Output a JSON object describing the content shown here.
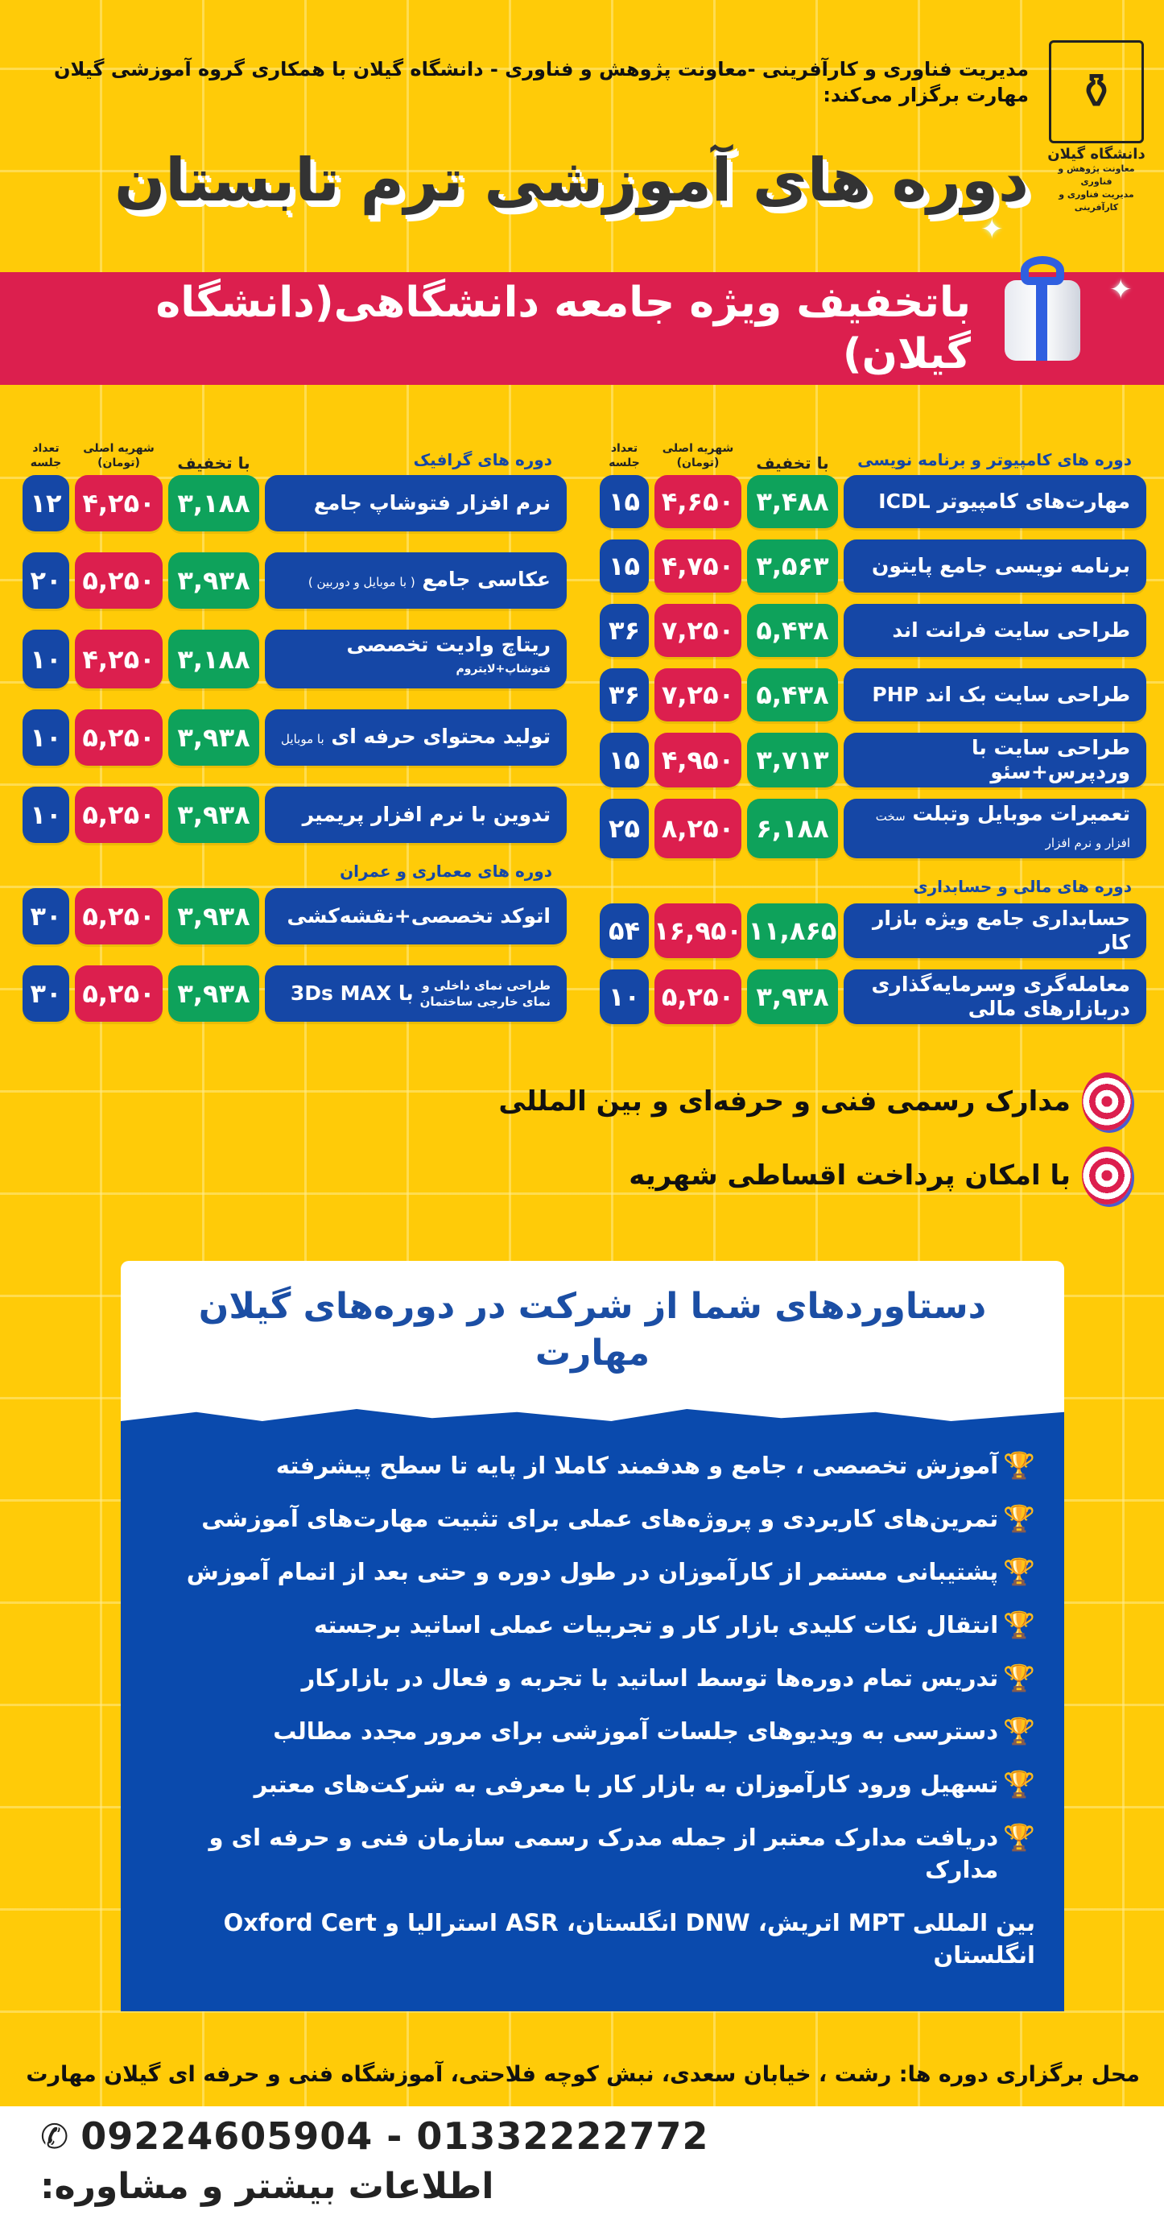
{
  "header": {
    "org_line": "مدیریت فناوری و کارآفرینی -معاونت پژوهش و فناوری - دانشگاه گیلان  با همکاری گروه آموزشی گیلان مهارت برگزار می‌کند:",
    "title": "دوره های آموزشی ترم تابستان",
    "banner": "باتخفیف ویژه جامعه دانشگاهی(دانشگاه گیلان)",
    "logo": {
      "name": "دانشگاه گیلان",
      "line2": "معاونت پژوهش و فناوری",
      "line3": "مدیریت فناوری و کارآفرینی",
      "icon": "university-emblem-icon"
    }
  },
  "columns": {
    "discounted": "با تخفیف",
    "original": "شهریه اصلی (تومان)",
    "sessions": "تعداد جلسه"
  },
  "tables": [
    {
      "side": "left",
      "sections": [
        {
          "label": "دوره های گرافیک",
          "courses": [
            {
              "name": "نرم افزار فتوشاپ جامع",
              "discounted": "۳,۱۸۸",
              "original": "۴,۲۵۰",
              "sessions": "۱۲"
            },
            {
              "name": "عکاسی جامع",
              "note": "( با موبایل و دوربین )",
              "discounted": "۳,۹۳۸",
              "original": "۵,۲۵۰",
              "sessions": "۲۰"
            },
            {
              "name": "ریتاچ وادیت تخصصی",
              "sup": "فتوشاپ+لایتروم",
              "discounted": "۳,۱۸۸",
              "original": "۴,۲۵۰",
              "sessions": "۱۰"
            },
            {
              "name": "تولید محتوای حرفه ای",
              "note": "با موبایل",
              "discounted": "۳,۹۳۸",
              "original": "۵,۲۵۰",
              "sessions": "۱۰"
            },
            {
              "name": "تدوین با نرم افزار پریمیر",
              "discounted": "۳,۹۳۸",
              "original": "۵,۲۵۰",
              "sessions": "۱۰"
            }
          ]
        },
        {
          "label": "دوره های معماری و عمران",
          "courses": [
            {
              "name": "اتوکد تخصصی+نقشه‌کشی",
              "discounted": "۳,۹۳۸",
              "original": "۵,۲۵۰",
              "sessions": "۳۰"
            },
            {
              "name": "با 3Ds MAX",
              "pre1": "طراحی نمای داخلی و",
              "pre2": "نمای خارجی ساختمان",
              "discounted": "۳,۹۳۸",
              "original": "۵,۲۵۰",
              "sessions": "۳۰"
            }
          ]
        }
      ]
    },
    {
      "side": "right",
      "sections": [
        {
          "label": "دوره های کامپیوتر و برنامه نویسی",
          "courses": [
            {
              "name": "مهارت‌های کامپیوتر ICDL",
              "discounted": "۳,۴۸۸",
              "original": "۴,۶۵۰",
              "sessions": "۱۵"
            },
            {
              "name": "برنامه نویسی جامع پایتون",
              "discounted": "۳,۵۶۳",
              "original": "۴,۷۵۰",
              "sessions": "۱۵"
            },
            {
              "name": "طراحی سایت فرانت اند",
              "discounted": "۵,۴۳۸",
              "original": "۷,۲۵۰",
              "sessions": "۳۶"
            },
            {
              "name": "طراحی سایت بک اند PHP",
              "discounted": "۵,۴۳۸",
              "original": "۷,۲۵۰",
              "sessions": "۳۶"
            },
            {
              "name": "طراحی سایت با وردپرس+سئو",
              "discounted": "۳,۷۱۳",
              "original": "۴,۹۵۰",
              "sessions": "۱۵"
            },
            {
              "name": "تعمیرات موبایل وتبلت",
              "note": "سخت افزار و نرم افزار",
              "discounted": "۶,۱۸۸",
              "original": "۸,۲۵۰",
              "sessions": "۲۵"
            }
          ]
        },
        {
          "label": "دوره های مالی و حسابداری",
          "courses": [
            {
              "name": "حسابداری جامع ویژه بازار کار",
              "discounted": "۱۱,۸۶۵",
              "original": "۱۶,۹۵۰",
              "sessions": "۵۴"
            },
            {
              "name": "معامله‌گری وسرمایه‌گذاری دربازارهای مالی",
              "discounted": "۳,۹۳۸",
              "original": "۵,۲۵۰",
              "sessions": "۱۰"
            }
          ]
        }
      ]
    }
  ],
  "features": {
    "certificates": "مدارک رسمی فنی و حرفه‌ای و بین المللی",
    "installments": "با امکان پرداخت اقساطی شهریه",
    "icon": "target-icon"
  },
  "achievements": {
    "title": "دستاوردهای شما از شرکت در دوره‌های گیلان مهارت",
    "icon": "trophy-icon",
    "items": [
      "آموزش تخصصی ، جامع و هدفمند کاملا از پایه تا سطح پیشرفته",
      "تمرین‌های کاربردی و پروژه‌های عملی برای تثبیت مهارت‌های آموزشی",
      "پشتیبانی مستمر از کارآموزان در طول دوره  و حتی بعد از اتمام آموزش",
      "انتقال نکات کلیدی بازار کار و تجربیات عملی اساتید برجسته",
      "تدریس تمام دوره‌ها توسط اساتید با تجربه و فعال در بازارکار",
      "دسترسی به ویدیوهای جلسات آموزشی برای مرور مجدد مطالب",
      "تسهیل ورود کارآموزان به بازار کار با معرفی به شرکت‌های معتبر",
      "دریافت مدارک معتبر از جمله مدرک رسمی سازمان فنی و حرفه ای و مدارک"
    ],
    "continuation": "بین المللی MPT اتریش، DNW انگلستان، ASR استرالیا و Oxford Cert انگلستان"
  },
  "footer": {
    "address": "محل برگزاری دوره ها: رشت ، خیابان سعدی، نبش کوچه فلاحتی، آموزشگاه فنی و حرفه ای گیلان مهارت",
    "contact_label": "اطلاعات بیشتر و مشاوره:",
    "phones": "09224605904 - 01332222772",
    "icon": "phone-icon"
  },
  "colors": {
    "yellow": "#ffcb08",
    "blue": "#1547a6",
    "red": "#dc1f4e",
    "green": "#0ea25b",
    "banner": "#dc1f4e"
  }
}
